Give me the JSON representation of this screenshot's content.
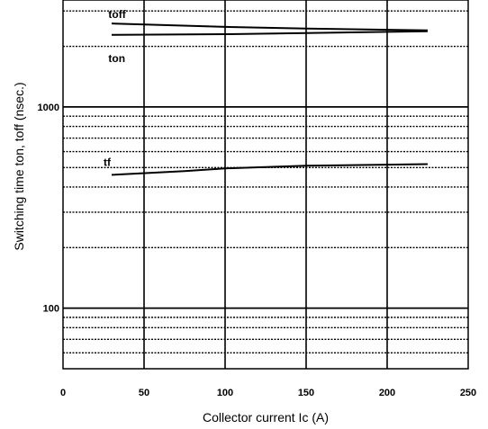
{
  "chart_data": {
    "type": "line",
    "title": "",
    "xlabel": "Collector current  Ic (A)",
    "ylabel": "Switching time  ton, toff  (nsec.)",
    "xlim": [
      0,
      250
    ],
    "ylim": [
      50,
      3400
    ],
    "yscale": "log",
    "x_ticks": [
      "0",
      "50",
      "100",
      "150",
      "200",
      "250"
    ],
    "y_ticks": [
      "100",
      "1000"
    ],
    "grid": true,
    "series": [
      {
        "name": "toff",
        "x": [
          30,
          100,
          150,
          225
        ],
        "y": [
          2600,
          2500,
          2450,
          2400
        ]
      },
      {
        "name": "ton",
        "x": [
          30,
          100,
          150,
          225
        ],
        "y": [
          2280,
          2300,
          2330,
          2380
        ]
      },
      {
        "name": "tf",
        "x": [
          30,
          75,
          100,
          150,
          225
        ],
        "y": [
          460,
          480,
          495,
          510,
          520
        ]
      }
    ]
  },
  "colors": {
    "line": "#000000",
    "grid": "#000000",
    "background": "#ffffff"
  }
}
